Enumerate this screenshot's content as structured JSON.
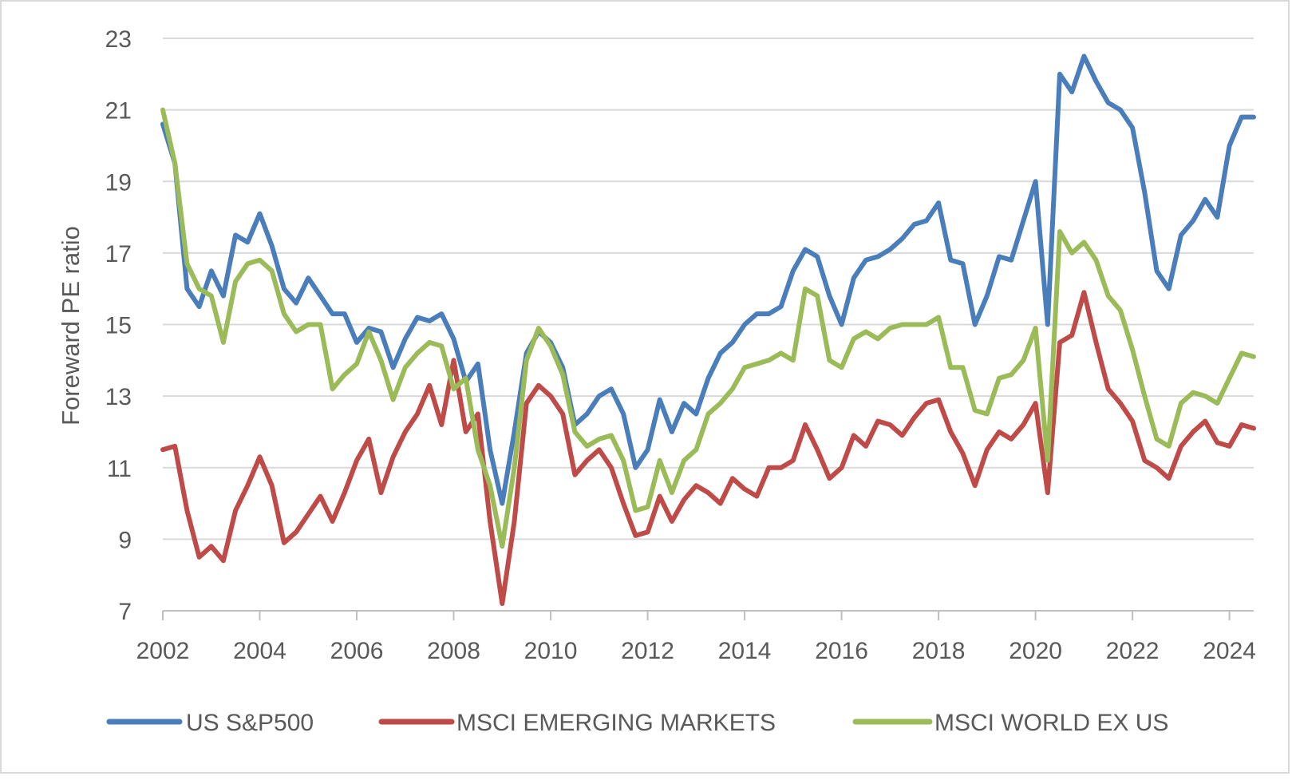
{
  "chart_data": {
    "type": "line",
    "title": "",
    "xlabel": "",
    "ylabel": "Foreward PE ratio",
    "xlim": [
      2002,
      2024.5
    ],
    "ylim": [
      7,
      23
    ],
    "yticks": [
      7,
      9,
      11,
      13,
      15,
      17,
      19,
      21,
      23
    ],
    "xticks": [
      2002,
      2004,
      2006,
      2008,
      2010,
      2012,
      2014,
      2016,
      2018,
      2020,
      2022,
      2024
    ],
    "grid": "horizontal",
    "legend_position": "bottom",
    "x_start": 2002,
    "x_step": 0.25,
    "series": [
      {
        "name": "US S&P500",
        "color": "#4a7ebb",
        "values": [
          20.6,
          19.5,
          16.0,
          15.5,
          16.5,
          15.8,
          17.5,
          17.3,
          18.1,
          17.2,
          16.0,
          15.6,
          16.3,
          15.8,
          15.3,
          15.3,
          14.5,
          14.9,
          14.8,
          13.8,
          14.6,
          15.2,
          15.1,
          15.3,
          14.6,
          13.4,
          13.9,
          11.5,
          10.0,
          12.0,
          14.2,
          14.8,
          14.5,
          13.8,
          12.2,
          12.5,
          13.0,
          13.2,
          12.5,
          11.0,
          11.5,
          12.9,
          12.0,
          12.8,
          12.5,
          13.5,
          14.2,
          14.5,
          15.0,
          15.3,
          15.3,
          15.5,
          16.5,
          17.1,
          16.9,
          15.8,
          15.0,
          16.3,
          16.8,
          16.9,
          17.1,
          17.4,
          17.8,
          17.9,
          18.4,
          16.8,
          16.7,
          15.0,
          15.8,
          16.9,
          16.8,
          17.9,
          19.0,
          15.0,
          22.0,
          21.5,
          22.5,
          21.8,
          21.2,
          21.0,
          20.5,
          18.7,
          16.5,
          16.0,
          17.5,
          17.9,
          18.5,
          18.0,
          20.0,
          20.8,
          20.8
        ]
      },
      {
        "name": "MSCI EMERGING MARKETS",
        "color": "#be4b48",
        "values": [
          11.5,
          11.6,
          9.8,
          8.5,
          8.8,
          8.4,
          9.8,
          10.5,
          11.3,
          10.5,
          8.9,
          9.2,
          9.7,
          10.2,
          9.5,
          10.3,
          11.2,
          11.8,
          10.3,
          11.3,
          12.0,
          12.5,
          13.3,
          12.2,
          14.0,
          12.0,
          12.5,
          9.5,
          7.2,
          9.5,
          12.8,
          13.3,
          13.0,
          12.5,
          10.8,
          11.2,
          11.5,
          11.0,
          10.0,
          9.1,
          9.2,
          10.2,
          9.5,
          10.1,
          10.5,
          10.3,
          10.0,
          10.7,
          10.4,
          10.2,
          11.0,
          11.0,
          11.2,
          12.2,
          11.5,
          10.7,
          11.0,
          11.9,
          11.6,
          12.3,
          12.2,
          11.9,
          12.4,
          12.8,
          12.9,
          12.0,
          11.4,
          10.5,
          11.5,
          12.0,
          11.8,
          12.2,
          12.8,
          10.3,
          14.5,
          14.7,
          15.9,
          14.5,
          13.2,
          12.8,
          12.3,
          11.2,
          11.0,
          10.7,
          11.6,
          12.0,
          12.3,
          11.7,
          11.6,
          12.2,
          12.1
        ]
      },
      {
        "name": "MSCI WORLD EX US",
        "color": "#9bbb59",
        "values": [
          21.0,
          19.5,
          16.7,
          16.0,
          15.8,
          14.5,
          16.2,
          16.7,
          16.8,
          16.5,
          15.3,
          14.8,
          15.0,
          15.0,
          13.2,
          13.6,
          13.9,
          14.8,
          14.0,
          12.9,
          13.8,
          14.2,
          14.5,
          14.4,
          13.2,
          13.5,
          11.5,
          10.5,
          8.8,
          11.0,
          14.0,
          14.9,
          14.4,
          13.6,
          12.0,
          11.6,
          11.8,
          11.9,
          11.2,
          9.8,
          9.9,
          11.2,
          10.3,
          11.2,
          11.5,
          12.5,
          12.8,
          13.2,
          13.8,
          13.9,
          14.0,
          14.2,
          14.0,
          16.0,
          15.8,
          14.0,
          13.8,
          14.6,
          14.8,
          14.6,
          14.9,
          15.0,
          15.0,
          15.0,
          15.2,
          13.8,
          13.8,
          12.6,
          12.5,
          13.5,
          13.6,
          14.0,
          14.9,
          11.2,
          17.6,
          17.0,
          17.3,
          16.8,
          15.8,
          15.4,
          14.3,
          13.0,
          11.8,
          11.6,
          12.8,
          13.1,
          13.0,
          12.8,
          13.5,
          14.2,
          14.1
        ]
      }
    ]
  }
}
